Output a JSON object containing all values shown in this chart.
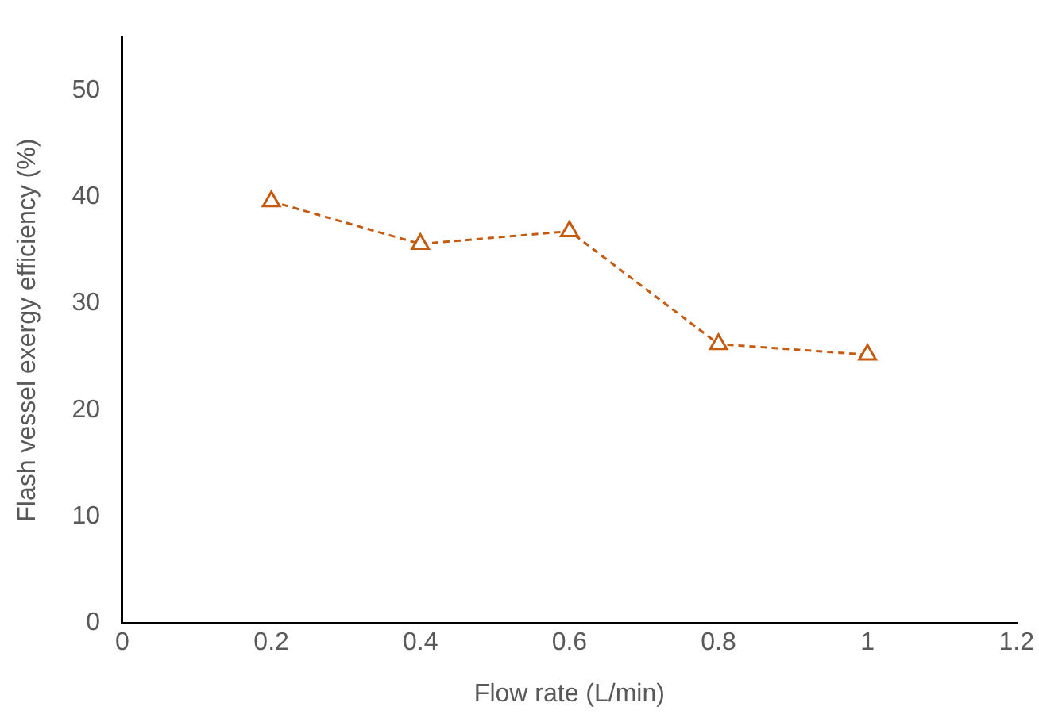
{
  "chart_data": {
    "type": "line",
    "xlabel": "Flow rate (L/min)",
    "ylabel": "Flash vessel exergy efficiency (%)",
    "x": [
      0.2,
      0.4,
      0.6,
      0.8,
      1.0
    ],
    "series": [
      {
        "color": "#c55a11",
        "values": [
          39.6,
          35.6,
          36.8,
          26.2,
          25.2
        ]
      }
    ],
    "xlim": [
      0,
      1.2
    ],
    "xticks": [
      0,
      0.2,
      0.4,
      0.6,
      0.8,
      1,
      1.2
    ],
    "ylim": [
      0,
      55
    ],
    "yticks": [
      0,
      10,
      20,
      30,
      40,
      50
    ],
    "grid": false,
    "marker": "triangle",
    "line_style": "dashed"
  }
}
